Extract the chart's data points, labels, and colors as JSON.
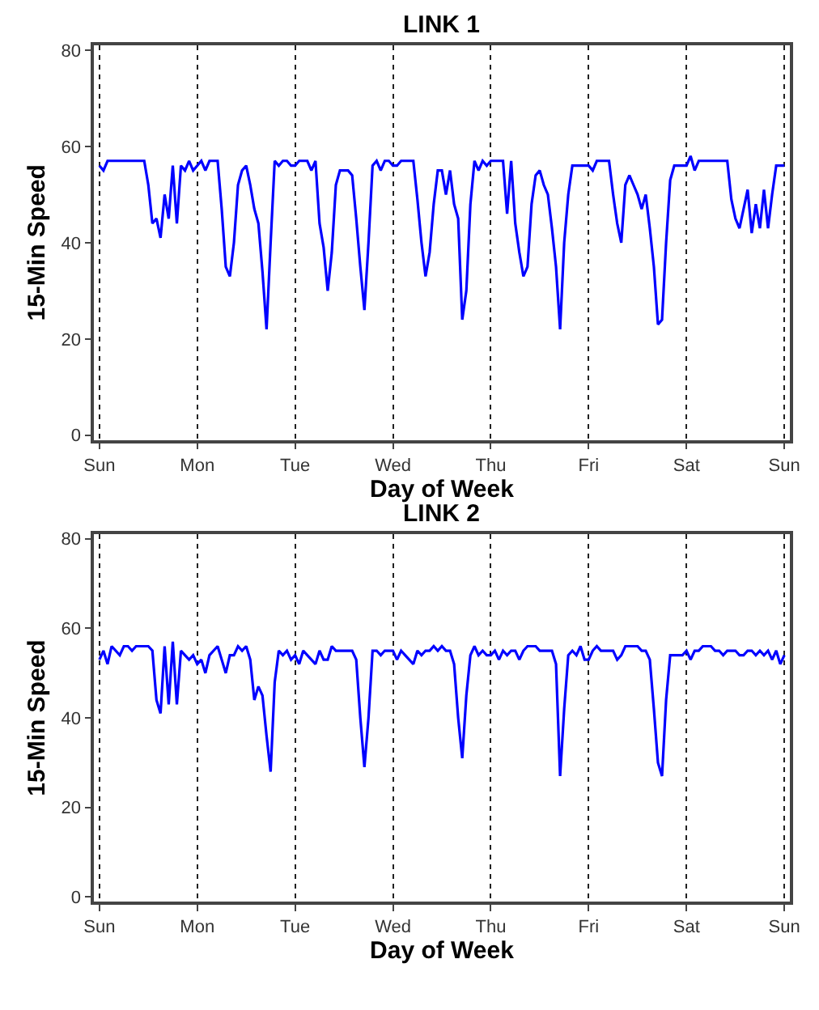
{
  "chart_data": [
    {
      "type": "line",
      "title": "LINK 1",
      "xlabel": "Day of Week",
      "ylabel": "15-Min Speed",
      "color": "#0000ff",
      "line_style": "solid",
      "grid": "x",
      "categories": [
        "Sun",
        null,
        null,
        null,
        null,
        null,
        null,
        null,
        null,
        null,
        null,
        null,
        null,
        null,
        null,
        null,
        null,
        null,
        null,
        null,
        null,
        null,
        null,
        null,
        "Mon",
        null,
        null,
        null,
        null,
        null,
        null,
        null,
        null,
        null,
        null,
        null,
        null,
        null,
        null,
        null,
        null,
        null,
        null,
        null,
        null,
        null,
        null,
        null,
        "Tue",
        null,
        null,
        null,
        null,
        null,
        null,
        null,
        null,
        null,
        null,
        null,
        null,
        null,
        null,
        null,
        null,
        null,
        null,
        null,
        null,
        null,
        null,
        null,
        "Wed",
        null,
        null,
        null,
        null,
        null,
        null,
        null,
        null,
        null,
        null,
        null,
        null,
        null,
        null,
        null,
        null,
        null,
        null,
        null,
        null,
        null,
        null,
        null,
        "Thu",
        null,
        null,
        null,
        null,
        null,
        null,
        null,
        null,
        null,
        null,
        null,
        null,
        null,
        null,
        null,
        null,
        null,
        null,
        null,
        null,
        null,
        null,
        null,
        "Fri",
        null,
        null,
        null,
        null,
        null,
        null,
        null,
        null,
        null,
        null,
        null,
        null,
        null,
        null,
        null,
        null,
        null,
        null,
        null,
        null,
        null,
        null,
        null,
        "Sat",
        null,
        null,
        null,
        null,
        null,
        null,
        null,
        null,
        null,
        null,
        null,
        null,
        null,
        null,
        null,
        null,
        null,
        null,
        null,
        null,
        null,
        null,
        null,
        "Sun"
      ],
      "values": [
        56,
        55,
        57,
        57,
        57,
        57,
        57,
        57,
        57,
        57,
        57,
        57,
        52,
        44,
        45,
        41,
        50,
        45,
        56,
        44,
        56,
        55,
        57,
        55,
        56,
        57,
        55,
        57,
        57,
        57,
        47,
        35,
        33,
        40,
        52,
        55,
        56,
        52,
        47,
        44,
        34,
        22,
        40,
        57,
        56,
        57,
        57,
        56,
        56,
        57,
        57,
        57,
        55,
        57,
        44,
        39,
        30,
        38,
        52,
        55,
        55,
        55,
        54,
        45,
        35,
        26,
        40,
        56,
        57,
        55,
        57,
        57,
        56,
        56,
        57,
        57,
        57,
        57,
        49,
        40,
        33,
        38,
        48,
        55,
        55,
        50,
        55,
        48,
        45,
        24,
        30,
        48,
        57,
        55,
        57,
        56,
        57,
        57,
        57,
        57,
        46,
        57,
        44,
        38,
        33,
        35,
        48,
        54,
        55,
        52,
        50,
        43,
        35,
        22,
        40,
        50,
        56,
        56,
        56,
        56,
        56,
        55,
        57,
        57,
        57,
        57,
        50,
        44,
        40,
        52,
        54,
        52,
        50,
        47,
        50,
        43,
        35,
        23,
        24,
        40,
        53,
        56,
        56,
        56,
        56,
        58,
        55,
        57,
        57,
        57,
        57,
        57,
        57,
        57,
        57,
        49,
        45,
        43,
        47,
        51,
        42,
        48,
        43,
        51,
        43,
        50,
        56,
        56,
        56
      ],
      "ylim": [
        -1,
        81
      ],
      "yticks": [
        0,
        20,
        40,
        60,
        80
      ]
    },
    {
      "type": "line",
      "title": "LINK 2",
      "xlabel": "Day of Week",
      "ylabel": "15-Min Speed",
      "color": "#0000ff",
      "line_style": "solid",
      "grid": "x",
      "categories": [
        "Sun",
        null,
        null,
        null,
        null,
        null,
        null,
        null,
        null,
        null,
        null,
        null,
        null,
        null,
        null,
        null,
        null,
        null,
        null,
        null,
        null,
        null,
        null,
        null,
        "Mon",
        null,
        null,
        null,
        null,
        null,
        null,
        null,
        null,
        null,
        null,
        null,
        null,
        null,
        null,
        null,
        null,
        null,
        null,
        null,
        null,
        null,
        null,
        null,
        "Tue",
        null,
        null,
        null,
        null,
        null,
        null,
        null,
        null,
        null,
        null,
        null,
        null,
        null,
        null,
        null,
        null,
        null,
        null,
        null,
        null,
        null,
        null,
        null,
        "Wed",
        null,
        null,
        null,
        null,
        null,
        null,
        null,
        null,
        null,
        null,
        null,
        null,
        null,
        null,
        null,
        null,
        null,
        null,
        null,
        null,
        null,
        null,
        null,
        "Thu",
        null,
        null,
        null,
        null,
        null,
        null,
        null,
        null,
        null,
        null,
        null,
        null,
        null,
        null,
        null,
        null,
        null,
        null,
        null,
        null,
        null,
        null,
        null,
        "Fri",
        null,
        null,
        null,
        null,
        null,
        null,
        null,
        null,
        null,
        null,
        null,
        null,
        null,
        null,
        null,
        null,
        null,
        null,
        null,
        null,
        null,
        null,
        null,
        "Sat",
        null,
        null,
        null,
        null,
        null,
        null,
        null,
        null,
        null,
        null,
        null,
        null,
        null,
        null,
        null,
        null,
        null,
        null,
        null,
        null,
        null,
        null,
        null,
        "Sun"
      ],
      "values": [
        53,
        55,
        52,
        56,
        55,
        54,
        56,
        56,
        55,
        56,
        56,
        56,
        56,
        55,
        44,
        41,
        56,
        43,
        57,
        43,
        55,
        54,
        53,
        54,
        52,
        53,
        50,
        54,
        55,
        56,
        53,
        50,
        54,
        54,
        56,
        55,
        56,
        53,
        44,
        47,
        45,
        36,
        28,
        48,
        55,
        54,
        55,
        53,
        54,
        52,
        55,
        54,
        53,
        52,
        55,
        53,
        53,
        56,
        55,
        55,
        55,
        55,
        55,
        53,
        40,
        29,
        40,
        55,
        55,
        54,
        55,
        55,
        55,
        53,
        55,
        54,
        53,
        52,
        55,
        54,
        55,
        55,
        56,
        55,
        56,
        55,
        55,
        52,
        40,
        31,
        45,
        54,
        56,
        54,
        55,
        54,
        54,
        55,
        53,
        55,
        54,
        55,
        55,
        53,
        55,
        56,
        56,
        56,
        55,
        55,
        55,
        55,
        52,
        27,
        42,
        54,
        55,
        54,
        56,
        53,
        53,
        55,
        56,
        55,
        55,
        55,
        55,
        53,
        54,
        56,
        56,
        56,
        56,
        55,
        55,
        53,
        42,
        30,
        27,
        44,
        54,
        54,
        54,
        54,
        55,
        53,
        55,
        55,
        56,
        56,
        56,
        55,
        55,
        54,
        55,
        55,
        55,
        54,
        54,
        55,
        55,
        54,
        55,
        54,
        55,
        53,
        55,
        52,
        54
      ],
      "ylim": [
        -1,
        81
      ],
      "yticks": [
        0,
        20,
        40,
        60,
        80
      ]
    }
  ]
}
